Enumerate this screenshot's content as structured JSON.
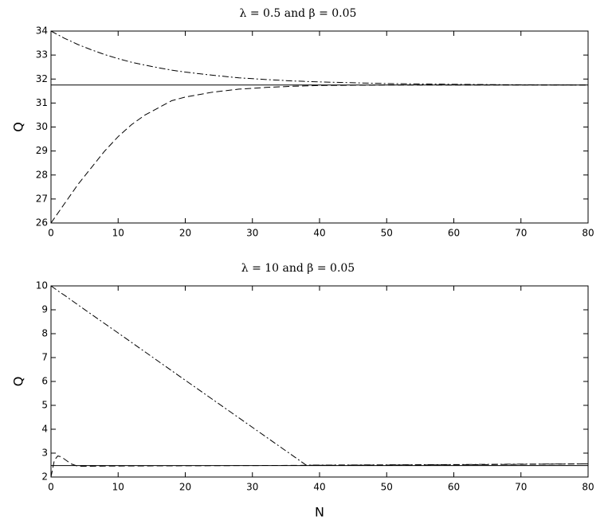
{
  "chart_data": [
    {
      "type": "line",
      "title": "λ = 0.5 and β = 0.05",
      "ylabel": "Q",
      "x": [
        0,
        2,
        4,
        6,
        8,
        10,
        12,
        14,
        16,
        18,
        20,
        24,
        28,
        32,
        36,
        40,
        50,
        60,
        70,
        80
      ],
      "series": [
        {
          "color": "#000000",
          "dash": "solid",
          "values": [
            31.75,
            31.75,
            31.75,
            31.75,
            31.75,
            31.75,
            31.75,
            31.75,
            31.75,
            31.75,
            31.75,
            31.75,
            31.75,
            31.75,
            31.75,
            31.75,
            31.75,
            31.75,
            31.75,
            31.75
          ]
        },
        {
          "color": "#000000",
          "dash": "dashdot",
          "values": [
            34.0,
            33.7,
            33.44,
            33.22,
            33.02,
            32.85,
            32.7,
            32.58,
            32.47,
            32.37,
            32.29,
            32.16,
            32.05,
            31.98,
            31.92,
            31.88,
            31.81,
            31.78,
            31.76,
            31.75
          ]
        },
        {
          "color": "#000000",
          "dash": "dashed",
          "values": [
            26.0,
            26.8,
            27.6,
            28.3,
            29.0,
            29.6,
            30.1,
            30.5,
            30.8,
            31.1,
            31.25,
            31.45,
            31.58,
            31.65,
            31.7,
            31.73,
            31.75,
            31.75,
            31.75,
            31.75
          ]
        }
      ],
      "xlim": [
        0,
        80
      ],
      "xticks": [
        0,
        10,
        20,
        30,
        40,
        50,
        60,
        70,
        80
      ],
      "ylim": [
        26,
        34
      ],
      "yticks": [
        26,
        27,
        28,
        29,
        30,
        31,
        32,
        33,
        34
      ]
    },
    {
      "type": "line",
      "title": "λ = 10 and β = 0.05",
      "ylabel": "Q",
      "xlabel": "N",
      "x": [
        0,
        0.5,
        1,
        1.5,
        2,
        3,
        4,
        5,
        10,
        20,
        30,
        38,
        40,
        50,
        60,
        70,
        80
      ],
      "series": [
        {
          "color": "#000000",
          "dash": "solid",
          "values": [
            2.48,
            2.48,
            2.48,
            2.48,
            2.48,
            2.48,
            2.48,
            2.48,
            2.48,
            2.48,
            2.48,
            2.48,
            2.48,
            2.48,
            2.48,
            2.48,
            2.48
          ]
        },
        {
          "color": "#000000",
          "dash": "dashdot",
          "values": [
            10.0,
            9.9,
            9.8,
            9.7,
            9.61,
            9.41,
            9.21,
            9.01,
            8.03,
            6.05,
            4.08,
            2.5,
            2.5,
            2.51,
            2.52,
            2.54,
            2.55
          ]
        },
        {
          "color": "#000000",
          "dash": "dashed",
          "values": [
            2.0,
            2.7,
            2.88,
            2.85,
            2.75,
            2.55,
            2.45,
            2.45,
            2.46,
            2.47,
            2.48,
            2.49,
            2.49,
            2.5,
            2.51,
            2.53,
            2.55
          ]
        }
      ],
      "xlim": [
        0,
        80
      ],
      "xticks": [
        0,
        10,
        20,
        30,
        40,
        50,
        60,
        70,
        80
      ],
      "ylim": [
        2,
        10
      ],
      "yticks": [
        2,
        3,
        4,
        5,
        6,
        7,
        8,
        9,
        10
      ]
    }
  ]
}
